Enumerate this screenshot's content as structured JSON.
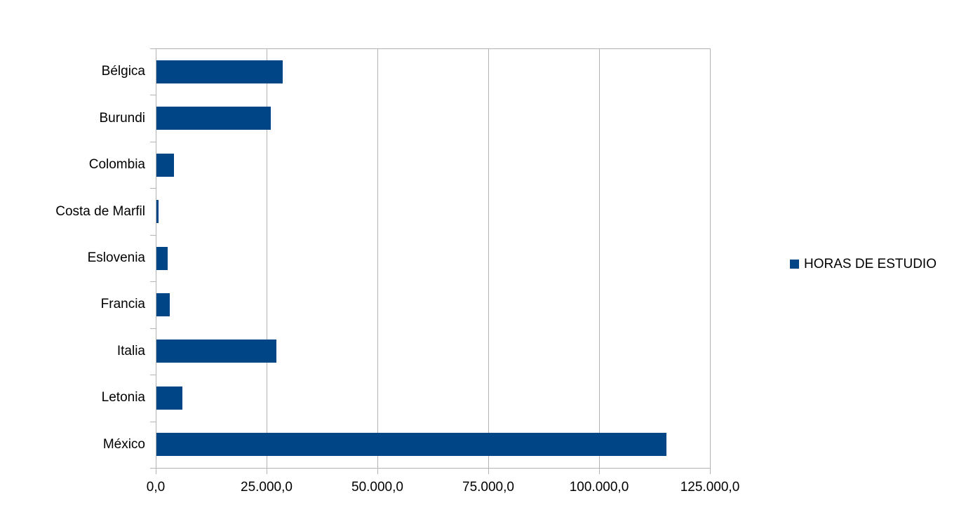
{
  "chart_data": {
    "type": "bar",
    "orientation": "horizontal",
    "title": "",
    "series_name": "HORAS DE ESTUDIO",
    "categories": [
      "Bélgica",
      "Burundi",
      "Colombia",
      "Costa de Marfil",
      "Eslovenia",
      "Francia",
      "Italia",
      "Letonia",
      "México"
    ],
    "values": [
      28500,
      25800,
      4000,
      500,
      2600,
      3000,
      27000,
      5900,
      115000
    ],
    "xlabel": "",
    "ylabel": "",
    "xlim": [
      0,
      125000
    ],
    "x_ticks": [
      0,
      25000,
      50000,
      75000,
      100000,
      125000
    ],
    "x_tick_labels": [
      "0,0",
      "25.000,0",
      "50.000,0",
      "75.000,0",
      "100.000,0",
      "125.000,0"
    ],
    "grid": "vertical",
    "legend_position": "right"
  },
  "legend": {
    "label": "HORAS DE ESTUDIO"
  },
  "colors": {
    "bar": "#004586",
    "grid": "#b3b3b3",
    "axis": "#b3b3b3",
    "text": "#000000",
    "background": "#ffffff"
  }
}
